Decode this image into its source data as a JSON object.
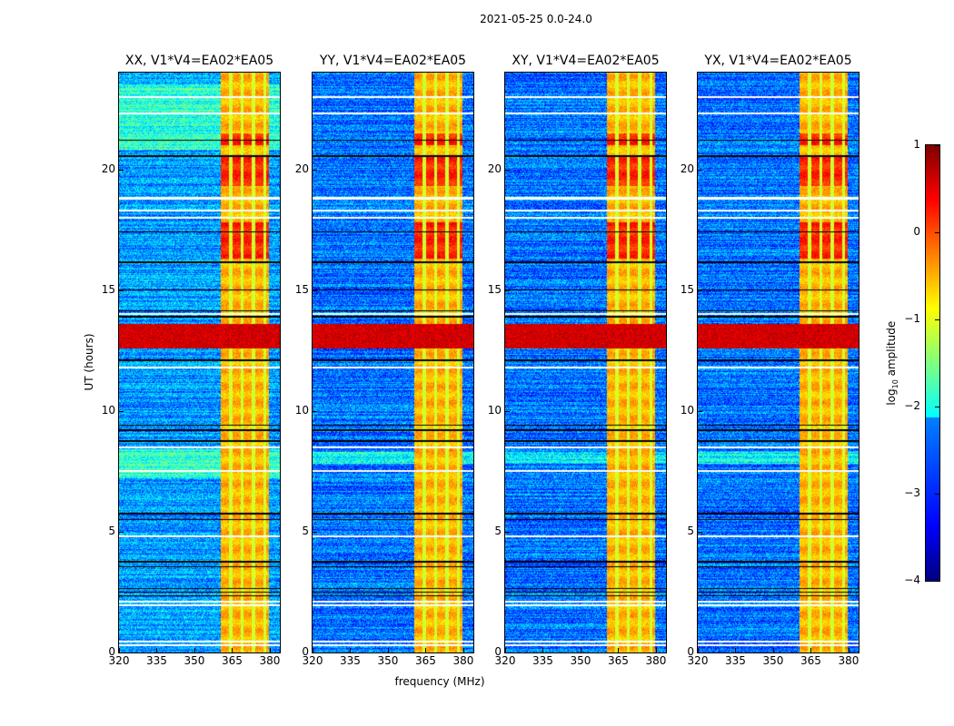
{
  "chart_data": {
    "type": "heatmap",
    "title": "2021-05-25 0.0-24.0",
    "xlabel": "frequency (MHz)",
    "ylabel": "UT (hours)",
    "xlim": [
      320,
      384
    ],
    "ylim": [
      0,
      24
    ],
    "xticks": [
      "320",
      "335",
      "350",
      "365",
      "380"
    ],
    "xtick_values": [
      320,
      335,
      350,
      365,
      380
    ],
    "yticks": [
      "0",
      "5",
      "10",
      "15",
      "20"
    ],
    "ytick_values": [
      0,
      5,
      10,
      15,
      20
    ],
    "panels": [
      {
        "title": "XX, V1*V4=EA02*EA05",
        "background_level": -2.6
      },
      {
        "title": "YY, V1*V4=EA02*EA05",
        "background_level": -2.8
      },
      {
        "title": "XY, V1*V4=EA02*EA05",
        "background_level": -2.8
      },
      {
        "title": "YX, V1*V4=EA02*EA05",
        "background_level": -2.8
      }
    ],
    "signal_band_mhz": [
      360.5,
      379.5
    ],
    "band_gap_channels_mhz": [
      364.5,
      369.0,
      373.5,
      378.0
    ],
    "strong_rfi_hours": [
      [
        12.6,
        13.6
      ],
      [
        16.3,
        17.8
      ],
      [
        19.3,
        20.6
      ],
      [
        21.0,
        21.5
      ]
    ],
    "flagged_white_hours": [
      0.3,
      0.45,
      1.95,
      2.1,
      4.8,
      7.5,
      8.5,
      11.8,
      14.0,
      18.0,
      18.3,
      18.8,
      22.3,
      23.0
    ],
    "flagged_black_hours": [
      2.35,
      2.5,
      2.65,
      3.55,
      3.75,
      5.5,
      5.75,
      8.75,
      9.2,
      9.4,
      12.1,
      13.9,
      14.15,
      15.0,
      16.15,
      17.4,
      20.55,
      21.2
    ],
    "colorbar": {
      "label": "log",
      "label_sub": "10",
      "label_rest": " amplitude",
      "range": [
        -4,
        1
      ],
      "ticks": [
        "1",
        "0",
        "−1",
        "−2",
        "−3",
        "−4"
      ],
      "tick_values": [
        1,
        0,
        -1,
        -2,
        -3,
        -4
      ],
      "colormap": "jet"
    }
  }
}
